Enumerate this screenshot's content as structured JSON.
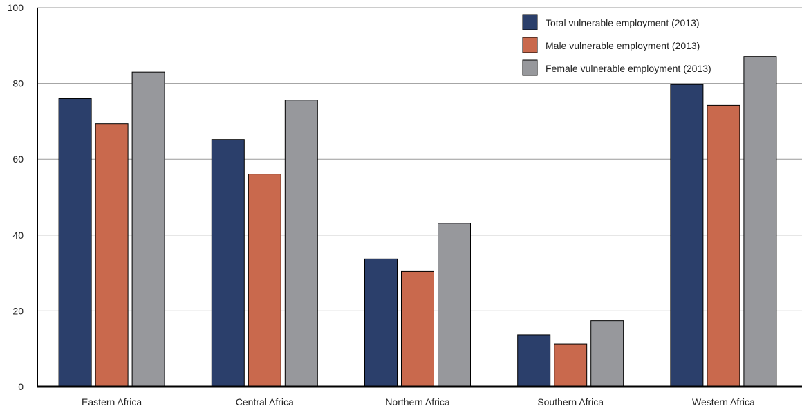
{
  "chart_data": {
    "type": "bar",
    "categories": [
      "Eastern Africa",
      "Central Africa",
      "Northern Africa",
      "Southern Africa",
      "Western Africa"
    ],
    "series": [
      {
        "name": "Total vulnerable employment (2013)",
        "color": "#2b3f6b",
        "values": [
          76,
          65.2,
          33.7,
          13.7,
          79.7
        ]
      },
      {
        "name": "Male vulnerable employment (2013)",
        "color": "#c9694d",
        "values": [
          69.4,
          56.1,
          30.4,
          11.3,
          74.2
        ]
      },
      {
        "name": "Female vulnerable employment (2013)",
        "color": "#97989c",
        "values": [
          83,
          75.6,
          43.1,
          17.4,
          87.1
        ]
      }
    ],
    "yticks": [
      0,
      20,
      40,
      60,
      80,
      100
    ],
    "ylim": [
      0,
      100
    ],
    "grid": true,
    "legend_position": "top-right"
  }
}
